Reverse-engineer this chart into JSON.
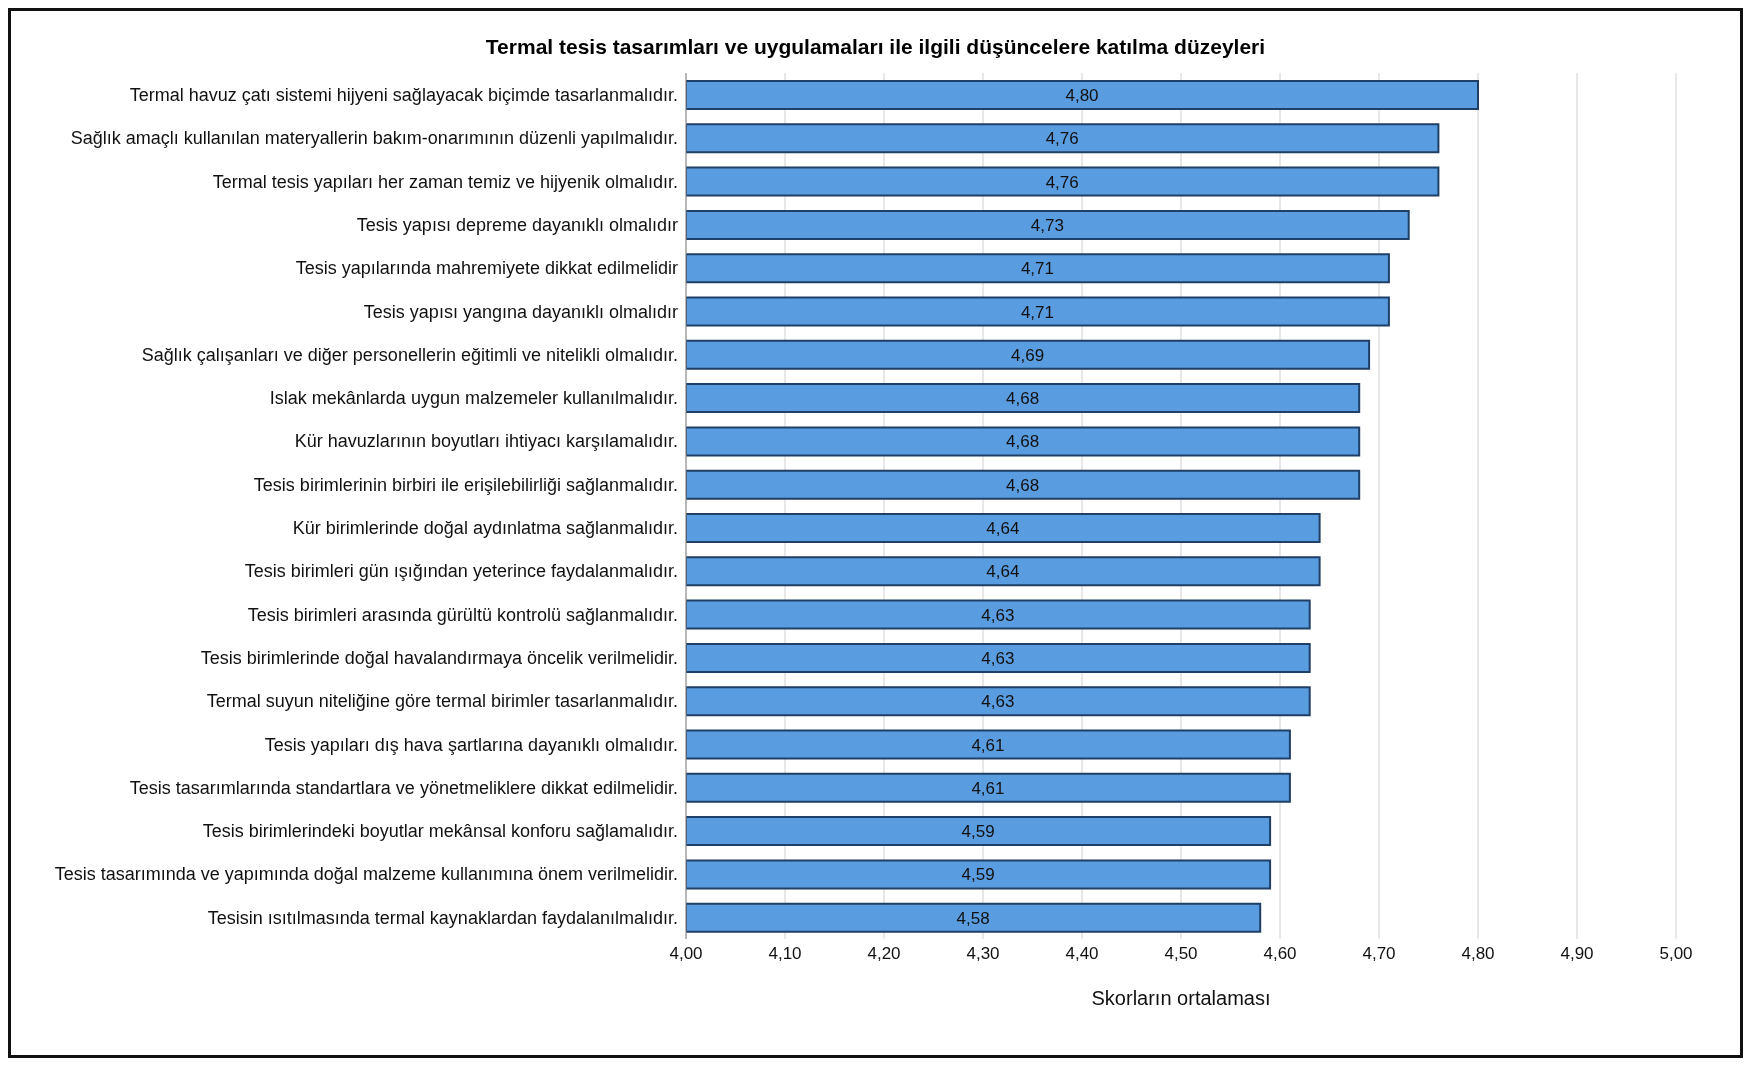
{
  "chart_data": {
    "type": "bar",
    "orientation": "horizontal",
    "title": "Termal  tesis tasarımları ve uygulamaları ile ilgili düşüncelere katılma düzeyleri",
    "xlabel": "Skorların ortalaması",
    "categories": [
      "Termal havuz çatı sistemi hijyeni sağlayacak biçimde tasarlanmalıdır.",
      "Sağlık amaçlı kullanılan materyallerin bakım-onarımının düzenli yapılmalıdır.",
      "Termal tesis yapıları her zaman temiz ve hijyenik olmalıdır.",
      "Tesis yapısı depreme dayanıklı olmalıdır",
      "Tesis yapılarında mahremiyete dikkat edilmelidir",
      "Tesis yapısı yangına dayanıklı olmalıdır",
      "Sağlık çalışanları ve diğer personellerin eğitimli ve nitelikli olmalıdır.",
      "Islak mekânlarda uygun malzemeler kullanılmalıdır.",
      "Kür havuzlarının boyutları ihtiyacı karşılamalıdır.",
      "Tesis birimlerinin birbiri ile erişilebilirliği sağlanmalıdır.",
      "Kür birimlerinde doğal aydınlatma sağlanmalıdır.",
      "Tesis birimleri gün ışığından yeterince faydalanmalıdır.",
      "Tesis birimleri arasında gürültü kontrolü sağlanmalıdır.",
      "Tesis birimlerinde doğal havalandırmaya öncelik verilmelidir.",
      "Termal suyun niteliğine göre termal birimler tasarlanmalıdır.",
      "Tesis yapıları dış hava şartlarına dayanıklı olmalıdır.",
      "Tesis tasarımlarında standartlara ve yönetmeliklere dikkat edilmelidir.",
      "Tesis birimlerindeki boyutlar mekânsal konforu sağlamalıdır.",
      "Tesis tasarımında ve yapımında doğal malzeme kullanımına önem verilmelidir.",
      "Tesisin ısıtılmasında termal kaynaklardan faydalanılmalıdır."
    ],
    "values": [
      4.8,
      4.76,
      4.76,
      4.73,
      4.71,
      4.71,
      4.69,
      4.68,
      4.68,
      4.68,
      4.64,
      4.64,
      4.63,
      4.63,
      4.63,
      4.61,
      4.61,
      4.59,
      4.59,
      4.58
    ],
    "value_labels": [
      "4,80",
      "4,76",
      "4,76",
      "4,73",
      "4,71",
      "4,71",
      "4,69",
      "4,68",
      "4,68",
      "4,68",
      "4,64",
      "4,64",
      "4,63",
      "4,63",
      "4,63",
      "4,61",
      "4,61",
      "4,59",
      "4,59",
      "4,58"
    ],
    "color": "#5a9ce0",
    "xlim": [
      4,
      5
    ],
    "xticks": [
      {
        "value": 4,
        "label": "4,00"
      },
      {
        "value": 4.1,
        "label": "4,10"
      },
      {
        "value": 4.2,
        "label": "4,20"
      },
      {
        "value": 4.3,
        "label": "4,30"
      },
      {
        "value": 4.4,
        "label": "4,40"
      },
      {
        "value": 4.5,
        "label": "4,50"
      },
      {
        "value": 4.6,
        "label": "4,60"
      },
      {
        "value": 4.7,
        "label": "4,70"
      },
      {
        "value": 4.8,
        "label": "4,80"
      },
      {
        "value": 4.9,
        "label": "4,90"
      },
      {
        "value": 5,
        "label": "5,00"
      }
    ],
    "grid": "x"
  }
}
